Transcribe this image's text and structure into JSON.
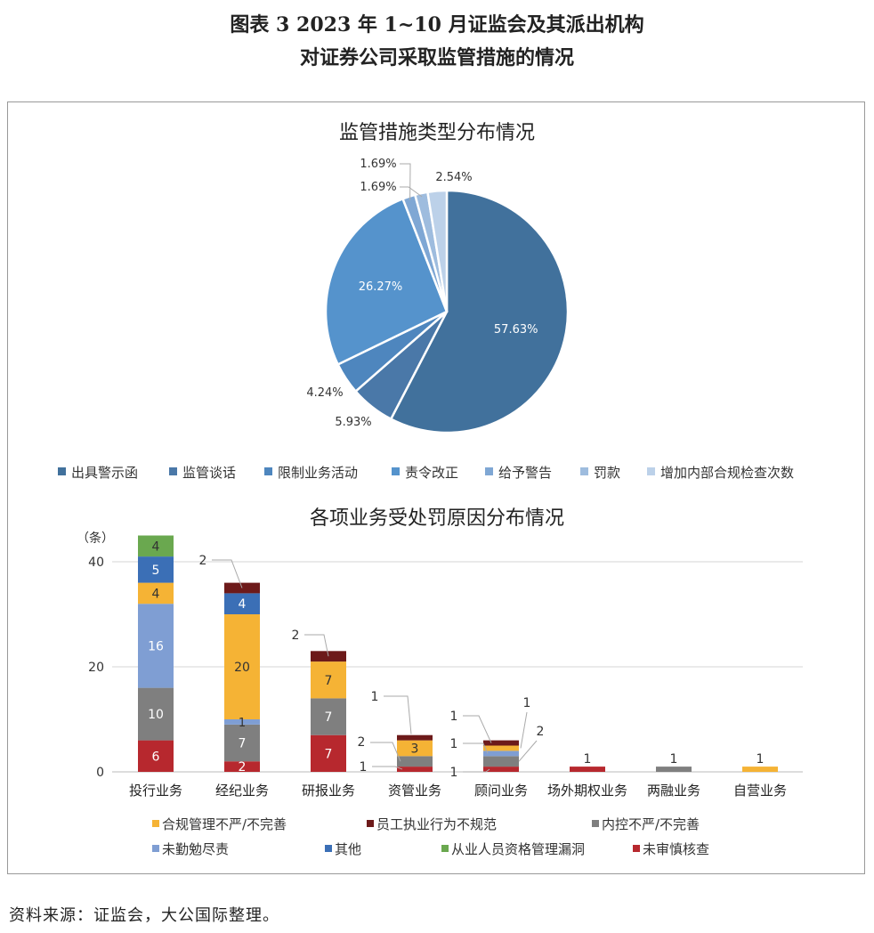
{
  "figure": {
    "title_line1": "图表 3 2023 年 1~10 月证监会及其派出机构",
    "title_line2": "对证券公司采取监管措施的情况",
    "source": "资料来源：证监会，大公国际整理。"
  },
  "chart_data": [
    {
      "type": "pie",
      "title": "监管措施类型分布情况",
      "legend_position": "bottom",
      "slices": [
        {
          "name": "出具警示函",
          "value": 57.63,
          "label": "57.63%",
          "color": "#41719c"
        },
        {
          "name": "监管谈话",
          "value": 5.93,
          "label": "5.93%",
          "color": "#4a78a8"
        },
        {
          "name": "限制业务活动",
          "value": 4.24,
          "label": "4.24%",
          "color": "#4e86be"
        },
        {
          "name": "责令改正",
          "value": 26.27,
          "label": "26.27%",
          "color": "#5593cc"
        },
        {
          "name": "给予警告",
          "value": 1.69,
          "label": "1.69%",
          "color": "#7fa7d4"
        },
        {
          "name": "罚款",
          "value": 1.69,
          "label": "1.69%",
          "color": "#9ebcde"
        },
        {
          "name": "增加内部合规检查次数",
          "value": 2.54,
          "label": "2.54%",
          "color": "#bcd1e9"
        }
      ]
    },
    {
      "type": "bar",
      "stacked": true,
      "title": "各项业务受处罚原因分布情况",
      "ylabel": "（条）",
      "ylim": [
        0,
        45
      ],
      "yticks": [
        0,
        20,
        40
      ],
      "grid": true,
      "legend_position": "bottom",
      "categories": [
        "投行业务",
        "经纪业务",
        "研报业务",
        "资管业务",
        "顾问业务",
        "场外期权业务",
        "两融业务",
        "自营业务"
      ],
      "series": [
        {
          "name": "未审慎核查",
          "color": "#b7282e",
          "values": [
            6,
            2,
            7,
            1,
            1,
            1,
            0,
            0
          ]
        },
        {
          "name": "内控不严/不完善",
          "color": "#7f7f7f",
          "values": [
            10,
            7,
            7,
            2,
            2,
            0,
            1,
            0
          ]
        },
        {
          "name": "未勤勉尽责",
          "color": "#7f9ed3",
          "values": [
            16,
            1,
            0,
            0,
            1,
            0,
            0,
            0
          ]
        },
        {
          "name": "合规管理不严/不完善",
          "color": "#f5b335",
          "values": [
            4,
            20,
            7,
            3,
            1,
            0,
            0,
            1
          ]
        },
        {
          "name": "其他",
          "color": "#3b6fb6",
          "values": [
            5,
            4,
            0,
            0,
            0,
            0,
            0,
            0
          ]
        },
        {
          "name": "从业人员资格管理漏洞",
          "color": "#6aa84f",
          "values": [
            4,
            0,
            0,
            0,
            0,
            0,
            0,
            0
          ]
        },
        {
          "name": "员工执业行为不规范",
          "color": "#6d1a1a",
          "values": [
            0,
            2,
            2,
            1,
            1,
            0,
            0,
            0
          ]
        }
      ],
      "legend_order": [
        "合规管理不严/不完善",
        "员工执业行为不规范",
        "内控不严/不完善",
        "未勤勉尽责",
        "其他",
        "从业人员资格管理漏洞",
        "未审慎核查"
      ]
    }
  ]
}
